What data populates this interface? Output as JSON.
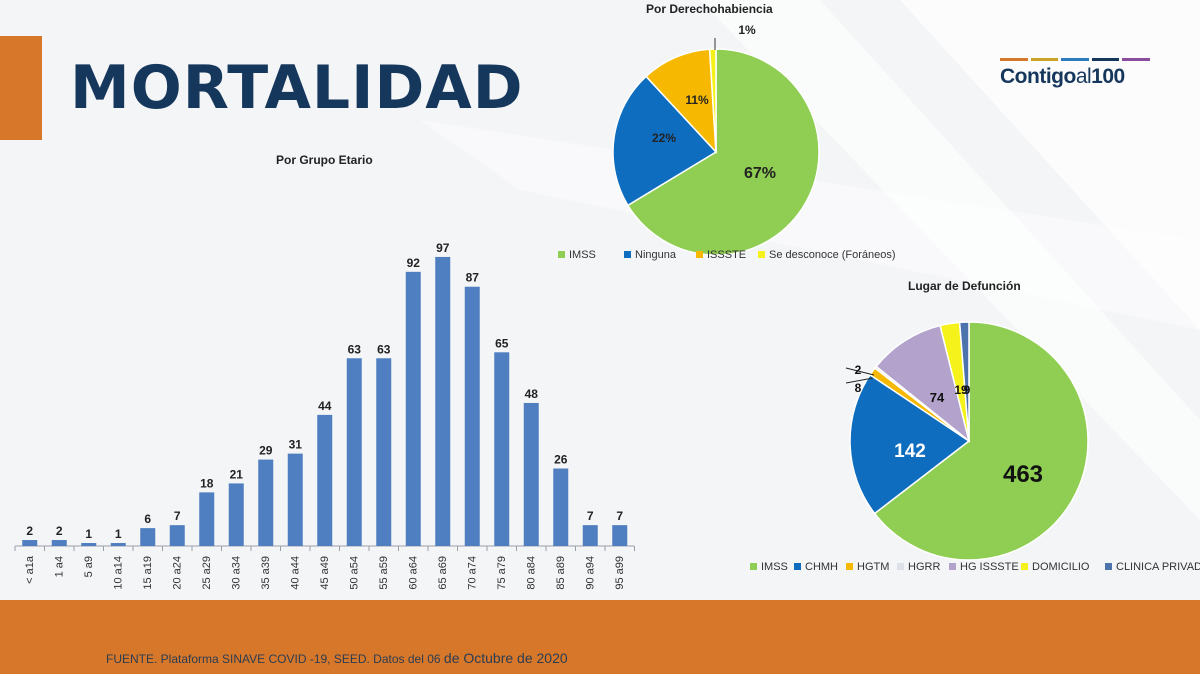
{
  "header": {
    "title": "MORTALIDAD",
    "logo_main": "Contigo",
    "logo_mid": "al",
    "logo_end": "100"
  },
  "footer": {
    "source_prefix": "FUENTE. Plataforma SINAVE COVID -19, SEED. Datos del 06 ",
    "source_date": "de Octubre de 2020"
  },
  "colors": {
    "accent_orange": "#d6772a",
    "title_navy": "#16375c",
    "bar_blue": "#4f7fc0",
    "green": "#8fce52",
    "blue": "#0f6dbf",
    "yellow_orange": "#f6b800",
    "light_gray": "#dde0e7",
    "lavender": "#b3a3cc",
    "yellow": "#f5f21b",
    "slate": "#4d73ad"
  },
  "chart_data": [
    {
      "type": "bar",
      "title": "Por Grupo Etario",
      "categories": [
        "< a1a",
        "1 a4",
        "5 a9",
        "10 a14",
        "15 a19",
        "20 a24",
        "25 a29",
        "30 a34",
        "35 a39",
        "40 a44",
        "45 a49",
        "50 a54",
        "55 a59",
        "60 a64",
        "65 a69",
        "70 a74",
        "75 a79",
        "80 a84",
        "85 a89",
        "90 a94",
        "95 a99"
      ],
      "values": [
        2,
        2,
        1,
        1,
        6,
        7,
        18,
        21,
        29,
        31,
        44,
        63,
        63,
        92,
        97,
        87,
        65,
        48,
        26,
        7,
        7
      ],
      "ylim": [
        0,
        100
      ],
      "xlabel": "",
      "ylabel": ""
    },
    {
      "type": "pie",
      "title": "Por Derechohabiencia",
      "labels": [
        "IMSS",
        "Ninguna",
        "ISSSTE",
        "Se desconoce (Foráneos)"
      ],
      "values": [
        67,
        22,
        11,
        1
      ],
      "value_labels": [
        "67%",
        "22%",
        "11%",
        "1%"
      ],
      "legend": "bottom"
    },
    {
      "type": "pie",
      "title": "Lugar de Defunción",
      "labels": [
        "IMSS",
        "CHMH",
        "HGTM",
        "HGRR",
        "HG ISSSTE",
        "DOMICILIO",
        "CLINICA PRIVADA"
      ],
      "values": [
        463,
        142,
        8,
        2,
        74,
        19,
        9
      ],
      "value_labels": [
        "463",
        "142",
        "8",
        "2",
        "74",
        "19",
        "9"
      ],
      "legend": "bottom"
    }
  ]
}
